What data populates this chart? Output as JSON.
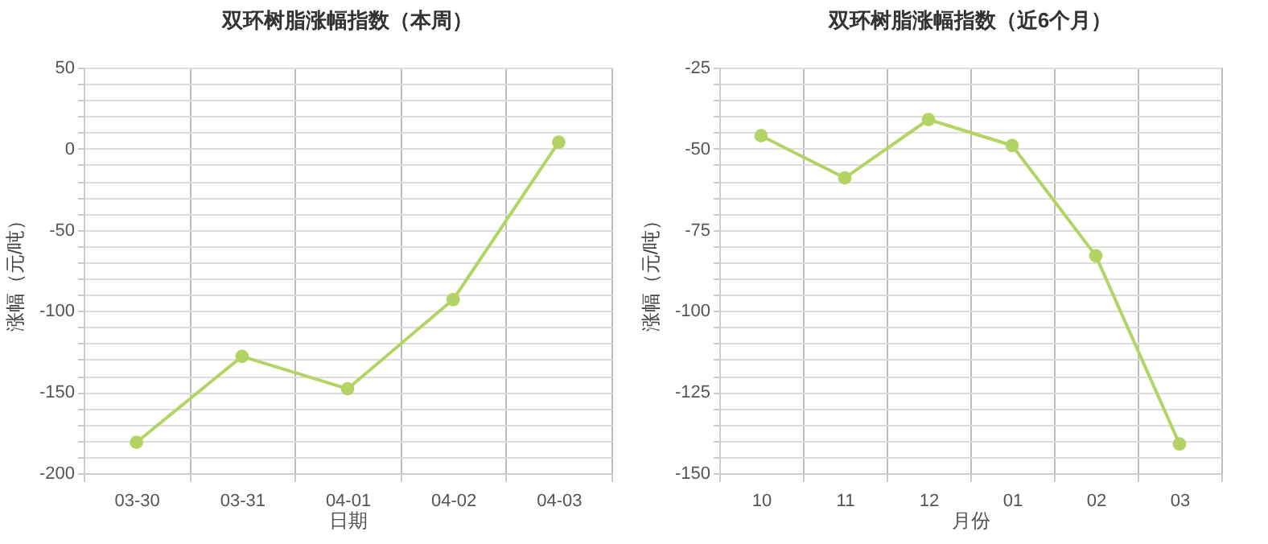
{
  "chart_data": [
    {
      "type": "line",
      "title": "双环树脂涨幅指数（本周）",
      "xlabel": "日期",
      "ylabel": "涨幅（元/吨）",
      "categories": [
        "03-30",
        "03-31",
        "04-01",
        "04-02",
        "04-03"
      ],
      "series": [
        {
          "color": "#b3d465",
          "values": [
            -181,
            -128,
            -148,
            -93,
            4
          ]
        }
      ],
      "ylim": [
        -200,
        50
      ],
      "yticks": [
        -200,
        {
          "value": -190,
          "label": null
        },
        {
          "value": -180,
          "label": null
        },
        {
          "value": -170,
          "label": null
        },
        {
          "value": -160,
          "label": null
        },
        -150,
        {
          "value": -140,
          "label": null
        },
        {
          "value": -130,
          "label": null
        },
        {
          "value": -120,
          "label": null
        },
        {
          "value": -110,
          "label": null
        },
        -100,
        {
          "value": -90,
          "label": null
        },
        {
          "value": -80,
          "label": null
        },
        {
          "value": -70,
          "label": null
        },
        {
          "value": -60,
          "label": null
        },
        -50,
        {
          "value": -40,
          "label": null
        },
        {
          "value": -30,
          "label": null
        },
        {
          "value": -20,
          "label": null
        },
        {
          "value": -10,
          "label": null
        },
        0,
        {
          "value": 10,
          "label": null
        },
        {
          "value": 20,
          "label": null
        },
        {
          "value": 30,
          "label": null
        },
        {
          "value": 40,
          "label": null
        },
        50
      ],
      "grid": true,
      "marker": "circle"
    },
    {
      "type": "line",
      "title": "双环树脂涨幅指数（近6个月）",
      "xlabel": "月份",
      "ylabel": "涨幅（元/吨）",
      "categories": [
        "10",
        "11",
        "12",
        "01",
        "02",
        "03"
      ],
      "series": [
        {
          "color": "#b3d465",
          "values": [
            -46,
            -59,
            -41,
            -49,
            -83,
            -141
          ]
        }
      ],
      "ylim": [
        -150,
        -25
      ],
      "yticks": [
        -150,
        {
          "value": -145,
          "label": null
        },
        {
          "value": -140,
          "label": null
        },
        {
          "value": -135,
          "label": null
        },
        {
          "value": -130,
          "label": null
        },
        -125,
        {
          "value": -120,
          "label": null
        },
        {
          "value": -115,
          "label": null
        },
        {
          "value": -110,
          "label": null
        },
        {
          "value": -105,
          "label": null
        },
        -100,
        {
          "value": -95,
          "label": null
        },
        {
          "value": -90,
          "label": null
        },
        {
          "value": -85,
          "label": null
        },
        {
          "value": -80,
          "label": null
        },
        -75,
        {
          "value": -70,
          "label": null
        },
        {
          "value": -65,
          "label": null
        },
        {
          "value": -60,
          "label": null
        },
        {
          "value": -55,
          "label": null
        },
        -50,
        {
          "value": -45,
          "label": null
        },
        {
          "value": -40,
          "label": null
        },
        {
          "value": -35,
          "label": null
        },
        {
          "value": -30,
          "label": null
        },
        -25
      ],
      "grid": true,
      "marker": "circle"
    }
  ]
}
